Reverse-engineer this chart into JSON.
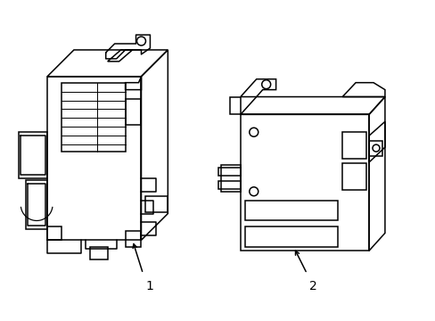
{
  "background_color": "#ffffff",
  "line_color": "#000000",
  "line_width": 1.1,
  "label1": "1",
  "label2": "2",
  "figsize": [
    4.89,
    3.6
  ],
  "dpi": 100
}
